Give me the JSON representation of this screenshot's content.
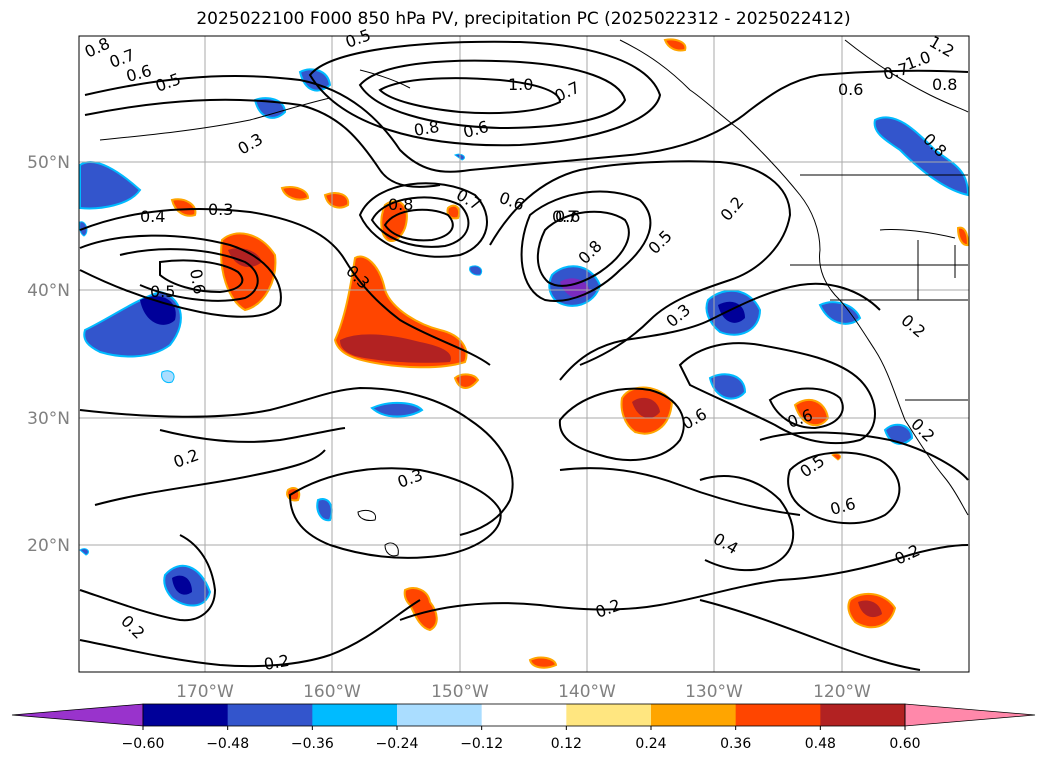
{
  "title": "2025022100 F000 850 hPa PV, precipitation PC (2025022312 - 2025022412)",
  "map": {
    "lat_labels": [
      "50°N",
      "40°N",
      "30°N",
      "20°N"
    ],
    "lon_labels": [
      "170°W",
      "160°W",
      "150°W",
      "140°W",
      "130°W",
      "120°W"
    ],
    "grid_color": "#aaaaaa",
    "label_color": "#808080"
  },
  "contour_labels": [
    "0.8",
    "0.7",
    "0.6",
    "0.5",
    "0.5",
    "1.0",
    "0.7",
    "0.8",
    "0.6",
    "0.3",
    "0.6",
    "0.8",
    "0.7",
    "0.6",
    "0.3",
    "0.4",
    "0.6",
    "0.5",
    "0.3",
    "0.7",
    "0.8",
    "0.5",
    "0.2",
    "0.3",
    "0.6",
    "0.6",
    "0.2",
    "0.3",
    "0.2",
    "0.5",
    "0.6",
    "0.4",
    "0.2",
    "0.2",
    "0.2",
    "0.2",
    "0.6",
    "0.7",
    "1.0",
    "0.8",
    "1.2",
    "0.8",
    "0.2"
  ],
  "colorbar": {
    "ticks": [
      "−0.60",
      "−0.48",
      "−0.36",
      "−0.24",
      "−0.12",
      "0.12",
      "0.24",
      "0.36",
      "0.48",
      "0.60"
    ],
    "colors": [
      "#9933cc",
      "#000099",
      "#3355cc",
      "#00bbff",
      "#aaddff",
      "#ffffff",
      "#ffe680",
      "#ffa500",
      "#ff4500",
      "#b22222",
      "#ff88aa"
    ]
  },
  "precip_colors": {
    "neg_light": "#aaddff",
    "neg_cyan": "#00bbff",
    "neg_mid": "#3355cc",
    "neg_dark": "#000099",
    "neg_purple": "#7a2bbf",
    "pos_yellow": "#ffe680",
    "pos_orange": "#ffa500",
    "pos_red": "#ff4500",
    "pos_dark": "#b22222"
  }
}
